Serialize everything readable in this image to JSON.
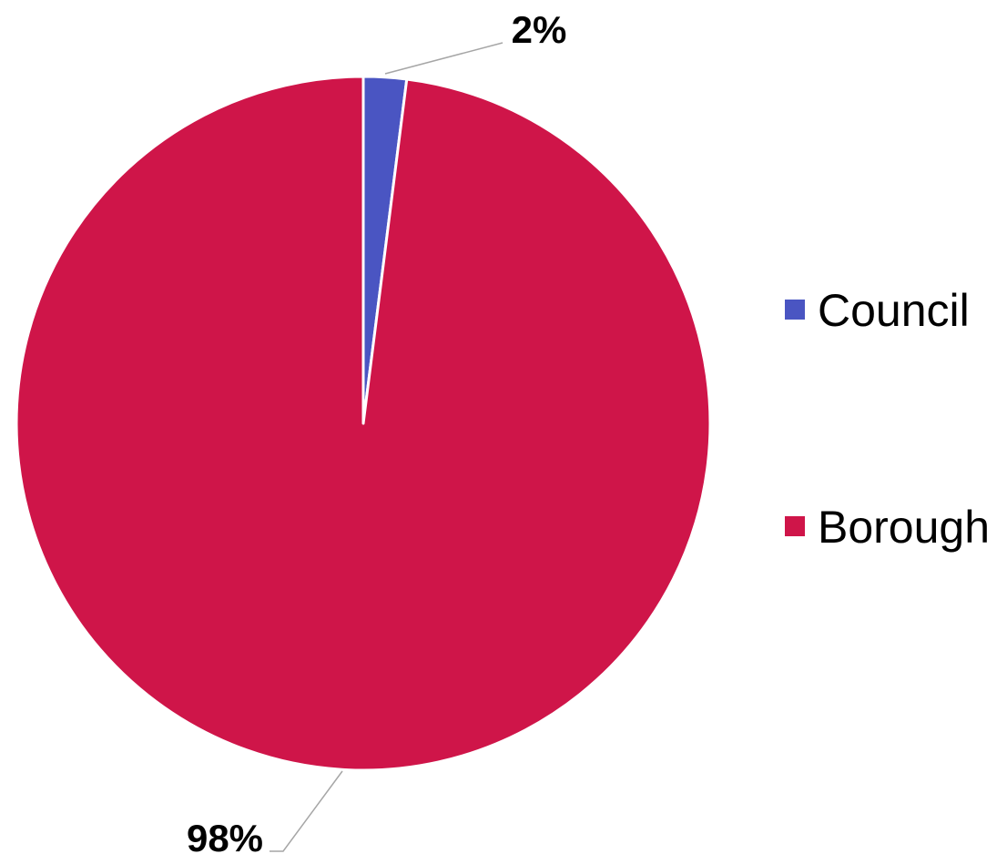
{
  "chart_data": {
    "type": "pie",
    "title": "",
    "slices": [
      {
        "label": "Council",
        "value": 2,
        "display": "2%",
        "color": "#4a55c2"
      },
      {
        "label": "Borough",
        "value": 98,
        "display": "98%",
        "color": "#cf1549"
      }
    ],
    "legend_position": "right",
    "slice_border_color": "#ffffff",
    "leader_line_color": "#a6a6a6"
  }
}
